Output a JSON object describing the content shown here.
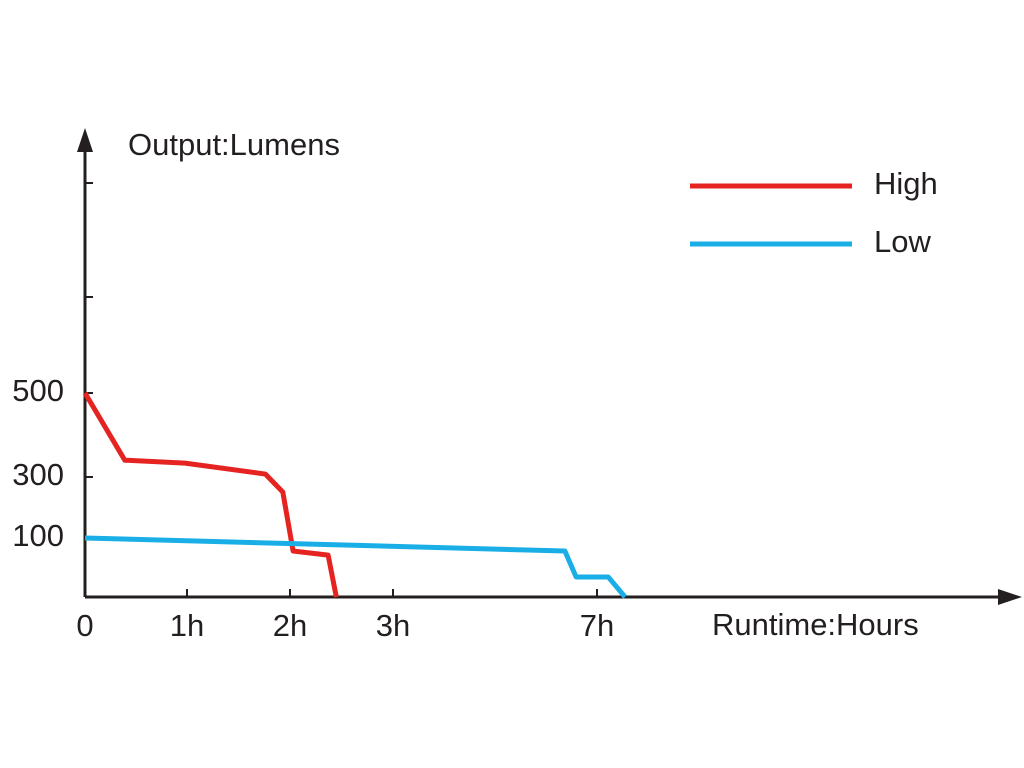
{
  "chart_data": {
    "type": "line",
    "y_label": "Output:Lumens",
    "x_label": "Runtime:Hours",
    "xticks": [
      0,
      {
        "value": 1,
        "label": "1h"
      },
      {
        "value": 2,
        "label": "2h"
      },
      {
        "value": 3,
        "label": "3h"
      },
      {
        "value": 7,
        "label": "7h"
      }
    ],
    "yticks": [
      0,
      100,
      300,
      500
    ],
    "series": [
      {
        "name": "High",
        "color": "#e52421",
        "x": [
          0,
          0.39,
          0.98,
          1.76,
          1.93,
          2.03,
          2.37,
          2.45
        ],
        "values": [
          500,
          340,
          333,
          307,
          251,
          78,
          71,
          0
        ]
      },
      {
        "name": "Low",
        "color": "#1aaee6",
        "x": [
          0,
          6.37,
          6.59,
          7.22,
          7.55
        ],
        "values": [
          100,
          78,
          34,
          34,
          0
        ]
      }
    ]
  }
}
